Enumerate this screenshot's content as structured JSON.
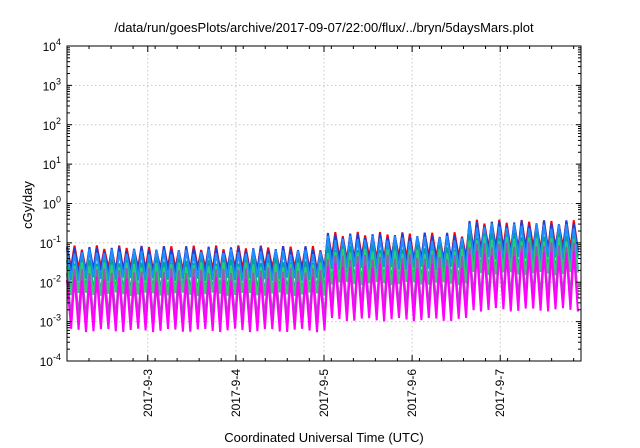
{
  "chart_data": {
    "type": "line",
    "title": "/data/run/goesPlots/archive/2017-09-07/22:00/flux/../bryn/5daysMars.plot",
    "xlabel": "Coordinated Universal Time (UTC)",
    "ylabel": "cGy/day",
    "y_scale": "log",
    "ylim_exponents": [
      -4,
      4
    ],
    "yticks": [
      {
        "base": "10",
        "exp": "-4",
        "exponent": -4
      },
      {
        "base": "10",
        "exp": "-3",
        "exponent": -3
      },
      {
        "base": "10",
        "exp": "-2",
        "exponent": -2
      },
      {
        "base": "10",
        "exp": "-1",
        "exponent": -1
      },
      {
        "base": "10",
        "exp": "0",
        "exponent": 0
      },
      {
        "base": "10",
        "exp": "1",
        "exponent": 1
      },
      {
        "base": "10",
        "exp": "2",
        "exponent": 2
      },
      {
        "base": "10",
        "exp": "3",
        "exponent": 3
      },
      {
        "base": "10",
        "exp": "4",
        "exponent": 4
      }
    ],
    "x_range_days": [
      "2017-09-02 02:00",
      "2017-09-07 22:00"
    ],
    "xticks": [
      {
        "label": "2017-9-3",
        "date": "2017-09-03 00:00"
      },
      {
        "label": "2017-9-4",
        "date": "2017-09-04 00:00"
      },
      {
        "label": "2017-9-5",
        "date": "2017-09-05 00:00"
      },
      {
        "label": "2017-9-6",
        "date": "2017-09-06 00:00"
      },
      {
        "label": "2017-9-7",
        "date": "2017-09-07 00:00"
      }
    ],
    "grid": true,
    "legend": "none",
    "pattern": {
      "period_hours": 2.03,
      "note_segments": [
        {
          "from": "2017-09-02 02:00",
          "to": "2017-09-05 00:00",
          "peak_factor": 1.0
        },
        {
          "from": "2017-09-05 00:00",
          "to": "2017-09-06 15:00",
          "peak_factor": 2.2
        },
        {
          "from": "2017-09-06 15:00",
          "to": "2017-09-07 22:00",
          "peak_factor": 4.5
        }
      ]
    },
    "series": [
      {
        "color": "#ff0000",
        "peak": 0.075,
        "trough": 0.022
      },
      {
        "color": "#1f3fd0",
        "peak": 0.072,
        "trough": 0.018
      },
      {
        "color": "#1e90ff",
        "peak": 0.06,
        "trough": 0.012
      },
      {
        "color": "#00a0a0",
        "peak": 0.035,
        "trough": 0.006
      },
      {
        "color": "#2ecc71",
        "peak": 0.028,
        "trough": 0.005
      },
      {
        "color": "#9b59b6",
        "peak": 0.02,
        "trough": 0.0012
      },
      {
        "color": "#ff00ff",
        "peak": 0.012,
        "trough": 0.0006
      }
    ]
  }
}
